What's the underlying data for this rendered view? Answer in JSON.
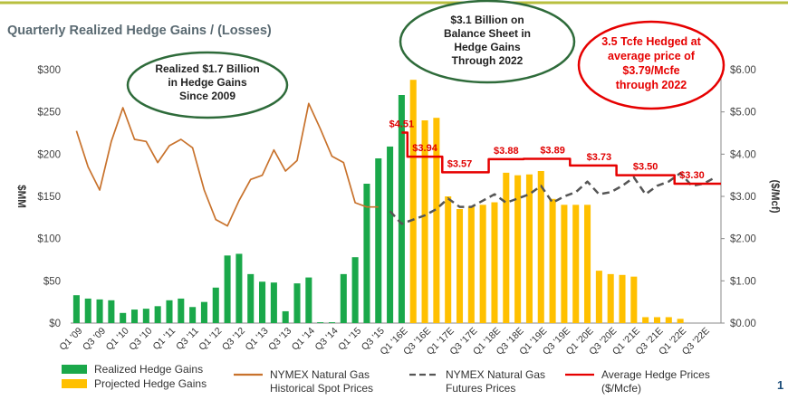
{
  "page_number": "1",
  "chart_data": {
    "type": "bar",
    "title": "Quarterly Realized Hedge Gains / (Losses)",
    "ylabel_left": "$MM",
    "ylabel_right": "($/Mcf)",
    "ylim_left": [
      0,
      300
    ],
    "ylim_right": [
      0,
      6
    ],
    "left_ticks": [
      "$0",
      "$50",
      "$100",
      "$150",
      "$200",
      "$250",
      "$300"
    ],
    "right_ticks": [
      "$0.00",
      "$1.00",
      "$2.00",
      "$3.00",
      "$4.00",
      "$5.00",
      "$6.00"
    ],
    "x_tick_labels": [
      "Q1 '09",
      "Q3 '09",
      "Q1 '10",
      "Q3 '10",
      "Q1 '11",
      "Q3 '11",
      "Q1 '12",
      "Q3 '12",
      "Q1 '13",
      "Q3 '13",
      "Q1 '14",
      "Q3 '14",
      "Q1 '15",
      "Q3 '15",
      "Q1 '16E",
      "Q3 '16E",
      "Q1 '17E",
      "Q3 '17E",
      "Q1 '18E",
      "Q3 '18E",
      "Q1 '19E",
      "Q3 '19E",
      "Q1 '20E",
      "Q3 '20E",
      "Q1 '21E",
      "Q3 '21E",
      "Q1 '22E",
      "Q3 '22E"
    ],
    "categories": [
      "Q1 '09",
      "Q2 '09",
      "Q3 '09",
      "Q4 '09",
      "Q1 '10",
      "Q2 '10",
      "Q3 '10",
      "Q4 '10",
      "Q1 '11",
      "Q2 '11",
      "Q3 '11",
      "Q4 '11",
      "Q1 '12",
      "Q2 '12",
      "Q3 '12",
      "Q4 '12",
      "Q1 '13",
      "Q2 '13",
      "Q3 '13",
      "Q4 '13",
      "Q1 '14",
      "Q2 '14",
      "Q3 '14",
      "Q4 '14",
      "Q1 '15",
      "Q2 '15",
      "Q3 '15",
      "Q4 '15",
      "Q1 '16E",
      "Q2 '16E",
      "Q3 '16E",
      "Q4 '16E",
      "Q1 '17E",
      "Q2 '17E",
      "Q3 '17E",
      "Q4 '17E",
      "Q1 '18E",
      "Q2 '18E",
      "Q3 '18E",
      "Q4 '18E",
      "Q1 '19E",
      "Q2 '19E",
      "Q3 '19E",
      "Q4 '19E",
      "Q1 '20E",
      "Q2 '20E",
      "Q3 '20E",
      "Q4 '20E",
      "Q1 '21E",
      "Q2 '21E",
      "Q3 '21E",
      "Q4 '21E",
      "Q1 '22E",
      "Q2 '22E",
      "Q3 '22E",
      "Q4 '22E"
    ],
    "series": [
      {
        "name": "Realized Hedge Gains",
        "axis": "left",
        "color": "#1aa84a",
        "values": [
          33,
          29,
          28,
          27,
          12,
          16,
          17,
          20,
          27,
          29,
          19,
          25,
          42,
          80,
          82,
          58,
          49,
          48,
          14,
          47,
          54,
          1,
          1,
          58,
          78,
          165,
          195,
          209,
          270,
          null,
          null,
          null,
          null,
          null,
          null,
          null,
          null,
          null,
          null,
          null,
          null,
          null,
          null,
          null,
          null,
          null,
          null,
          null,
          null,
          null,
          null,
          null,
          null,
          null,
          null,
          null
        ]
      },
      {
        "name": "Projected Hedge Gains",
        "axis": "left",
        "color": "#ffc000",
        "values": [
          null,
          null,
          null,
          null,
          null,
          null,
          null,
          null,
          null,
          null,
          null,
          null,
          null,
          null,
          null,
          null,
          null,
          null,
          null,
          null,
          null,
          null,
          null,
          null,
          null,
          null,
          null,
          null,
          null,
          288,
          240,
          243,
          150,
          135,
          138,
          140,
          143,
          178,
          175,
          176,
          180,
          147,
          140,
          140,
          140,
          62,
          58,
          57,
          55,
          7,
          7,
          7,
          5,
          0,
          0,
          0
        ]
      },
      {
        "name": "NYMEX Natural Gas Historical Spot Prices",
        "axis": "right",
        "color": "#c8722c",
        "values": [
          4.55,
          3.7,
          3.15,
          4.3,
          5.1,
          4.35,
          4.3,
          3.8,
          4.2,
          4.35,
          4.15,
          3.15,
          2.45,
          2.3,
          2.9,
          3.4,
          3.5,
          4.1,
          3.6,
          3.85,
          5.2,
          4.6,
          3.95,
          3.8,
          2.85,
          2.75,
          2.75,
          null,
          null,
          null,
          null,
          null,
          null,
          null,
          null,
          null,
          null,
          null,
          null,
          null,
          null,
          null,
          null,
          null,
          null,
          null,
          null,
          null,
          null,
          null,
          null,
          null,
          null,
          null,
          null,
          null
        ]
      },
      {
        "name": "NYMEX Natural Gas Futures Prices",
        "axis": "right",
        "color": "#555555",
        "values": [
          null,
          null,
          null,
          null,
          null,
          null,
          null,
          null,
          null,
          null,
          null,
          null,
          null,
          null,
          null,
          null,
          null,
          null,
          null,
          null,
          null,
          null,
          null,
          null,
          null,
          null,
          null,
          2.65,
          2.35,
          2.45,
          2.55,
          2.7,
          2.95,
          2.75,
          2.75,
          2.9,
          3.05,
          2.85,
          2.95,
          3.05,
          3.25,
          2.85,
          3.0,
          3.1,
          3.35,
          3.05,
          3.1,
          3.25,
          3.45,
          3.05,
          3.25,
          3.35,
          3.55,
          3.25,
          3.3,
          3.45
        ]
      },
      {
        "name": "Average Hedge Prices ($/Mcfe)",
        "axis": "right",
        "color": "#e60000",
        "values": [
          null,
          null,
          null,
          null,
          null,
          null,
          null,
          null,
          null,
          null,
          null,
          null,
          null,
          null,
          null,
          null,
          null,
          null,
          null,
          null,
          null,
          null,
          null,
          null,
          null,
          null,
          null,
          null,
          4.51,
          3.94,
          3.94,
          3.94,
          3.57,
          3.57,
          3.57,
          3.57,
          3.88,
          3.88,
          3.88,
          3.89,
          3.89,
          3.89,
          3.89,
          3.73,
          3.73,
          3.73,
          3.73,
          3.5,
          3.5,
          3.5,
          3.5,
          3.5,
          3.3,
          3.3,
          3.3,
          3.3
        ]
      }
    ],
    "price_labels": [
      {
        "text": "$4.51",
        "index": 28,
        "value": 4.51
      },
      {
        "text": "$3.94",
        "index": 30,
        "value": 3.94
      },
      {
        "text": "$3.57",
        "index": 33,
        "value": 3.57
      },
      {
        "text": "$3.88",
        "index": 37,
        "value": 3.88
      },
      {
        "text": "$3.89",
        "index": 41,
        "value": 3.89
      },
      {
        "text": "$3.73",
        "index": 45,
        "value": 3.73
      },
      {
        "text": "$3.50",
        "index": 49,
        "value": 3.5
      },
      {
        "text": "$3.30",
        "index": 53,
        "value": 3.3
      }
    ],
    "annotations": [
      {
        "lines": [
          "Realized $1.7 Billion",
          "in Hedge Gains",
          "Since 2009"
        ],
        "style": "green"
      },
      {
        "lines": [
          "$3.1 Billion on",
          "Balance Sheet in",
          "Hedge Gains",
          "Through 2022"
        ],
        "style": "green"
      },
      {
        "lines": [
          "3.5 Tcfe Hedged at",
          "average price of",
          "$3.79/Mcfe",
          "through 2022"
        ],
        "style": "red"
      }
    ],
    "legend": [
      {
        "lines": [
          "Realized Hedge Gains"
        ],
        "marker": "box",
        "color": "#1aa84a"
      },
      {
        "lines": [
          "Projected Hedge Gains"
        ],
        "marker": "box",
        "color": "#ffc000"
      },
      {
        "lines": [
          "NYMEX Natural Gas",
          "Historical Spot Prices"
        ],
        "marker": "solid",
        "color": "#c8722c"
      },
      {
        "lines": [
          "NYMEX Natural Gas",
          "Futures Prices"
        ],
        "marker": "dashed",
        "color": "#555555"
      },
      {
        "lines": [
          "Average Hedge Prices",
          "($/Mcfe)"
        ],
        "marker": "solid",
        "color": "#e60000"
      }
    ],
    "legend_placement": "bottom",
    "grid": false
  }
}
